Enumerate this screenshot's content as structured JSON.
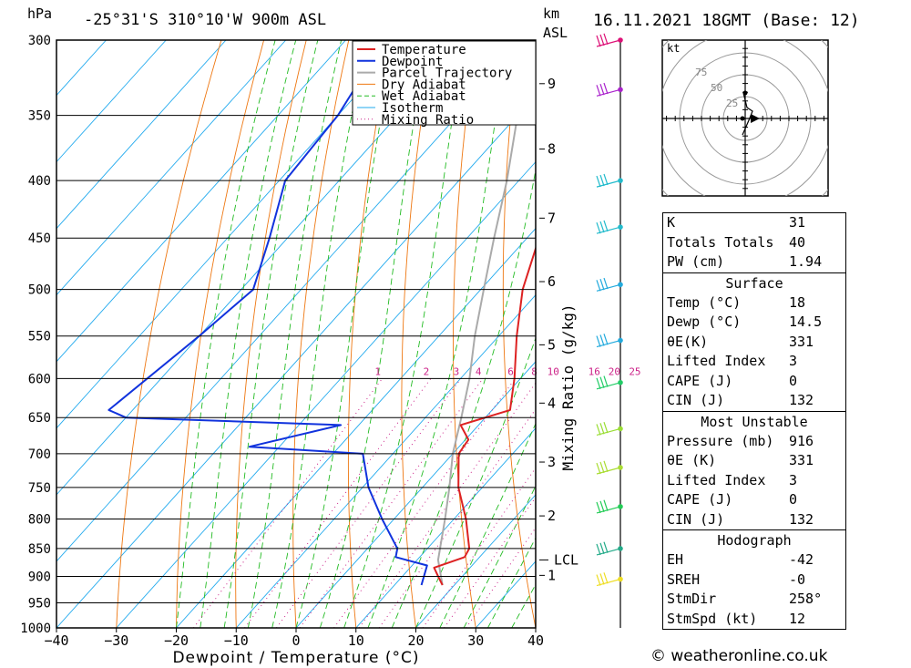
{
  "header": {
    "pressure_unit": "hPa",
    "location": "-25°31'S  310°10'W  900m  ASL",
    "height_unit": "km",
    "height_unit_sub": "ASL",
    "datetime": "16.11.2021  18GMT  (Base: 12)"
  },
  "chart_data": {
    "type": "skew-t log-p",
    "xlabel": "Dewpoint / Temperature (°C)",
    "ylabel": "hPa",
    "xlim": [
      -40,
      40
    ],
    "ylim": [
      1000,
      300
    ],
    "x_ticks": [
      -40,
      -30,
      -20,
      -10,
      0,
      10,
      20,
      30,
      40
    ],
    "p_levels": [
      300,
      350,
      400,
      450,
      500,
      550,
      600,
      650,
      700,
      750,
      800,
      850,
      900,
      950,
      1000
    ],
    "km_ticks": [
      {
        "label": "1",
        "p": 898
      },
      {
        "label": "2",
        "p": 795
      },
      {
        "label": "3",
        "p": 712
      },
      {
        "label": "4",
        "p": 631
      },
      {
        "label": "5",
        "p": 560
      },
      {
        "label": "6",
        "p": 492
      },
      {
        "label": "7",
        "p": 432
      },
      {
        "label": "8",
        "p": 375
      },
      {
        "label": "9",
        "p": 328
      }
    ],
    "lcl": {
      "label": "LCL",
      "p": 870
    },
    "mixing_ratio_label": "Mixing Ratio (g/kg)",
    "mixing_ratio_values": [
      "1",
      "2",
      "3",
      "4",
      "6",
      "8",
      "10",
      "16",
      "20",
      "25"
    ],
    "legend": [
      "Temperature",
      "Dewpoint",
      "Parcel Trajectory",
      "Dry Adiabat",
      "Wet Adiabat",
      "Isotherm",
      "Mixing Ratio"
    ],
    "temperature": [
      {
        "p": 916,
        "t": 18
      },
      {
        "p": 900,
        "t": 16
      },
      {
        "p": 884,
        "t": 14
      },
      {
        "p": 865,
        "t": 17.5
      },
      {
        "p": 850,
        "t": 17
      },
      {
        "p": 800,
        "t": 12
      },
      {
        "p": 750,
        "t": 6
      },
      {
        "p": 700,
        "t": 1
      },
      {
        "p": 680,
        "t": 0.5
      },
      {
        "p": 660,
        "t": -3
      },
      {
        "p": 640,
        "t": 3
      },
      {
        "p": 600,
        "t": -1
      },
      {
        "p": 550,
        "t": -7
      },
      {
        "p": 500,
        "t": -13
      },
      {
        "p": 450,
        "t": -18
      },
      {
        "p": 400,
        "t": -24
      },
      {
        "p": 350,
        "t": -32
      },
      {
        "p": 300,
        "t": -42
      }
    ],
    "dewpoint": [
      {
        "p": 916,
        "t": 14.5
      },
      {
        "p": 880,
        "t": 12.5
      },
      {
        "p": 865,
        "t": 6
      },
      {
        "p": 850,
        "t": 5
      },
      {
        "p": 800,
        "t": -2
      },
      {
        "p": 750,
        "t": -9
      },
      {
        "p": 700,
        "t": -15
      },
      {
        "p": 690,
        "t": -35
      },
      {
        "p": 660,
        "t": -23
      },
      {
        "p": 650,
        "t": -60
      },
      {
        "p": 640,
        "t": -64
      },
      {
        "p": 550,
        "t": -60
      },
      {
        "p": 500,
        "t": -58
      },
      {
        "p": 450,
        "t": -63
      },
      {
        "p": 400,
        "t": -69
      },
      {
        "p": 350,
        "t": -70
      },
      {
        "p": 320,
        "t": -72
      },
      {
        "p": 300,
        "t": -70
      }
    ],
    "parcel": [
      {
        "p": 916,
        "t": 18
      },
      {
        "p": 870,
        "t": 13.5
      },
      {
        "p": 800,
        "t": 8.5
      },
      {
        "p": 750,
        "t": 4.5
      },
      {
        "p": 700,
        "t": 0
      },
      {
        "p": 650,
        "t": -4
      },
      {
        "p": 600,
        "t": -8.5
      },
      {
        "p": 550,
        "t": -14
      },
      {
        "p": 500,
        "t": -19.5
      },
      {
        "p": 450,
        "t": -25.5
      },
      {
        "p": 400,
        "t": -32
      },
      {
        "p": 350,
        "t": -40
      },
      {
        "p": 300,
        "t": -50
      }
    ],
    "wind_profile": [
      {
        "p": 300,
        "color": "#dd1177"
      },
      {
        "p": 332,
        "color": "#aa22cc"
      },
      {
        "p": 400,
        "color": "#22bbcc"
      },
      {
        "p": 440,
        "color": "#22bbcc"
      },
      {
        "p": 495,
        "color": "#22aadd"
      },
      {
        "p": 555,
        "color": "#22aadd"
      },
      {
        "p": 605,
        "color": "#22cc66"
      },
      {
        "p": 665,
        "color": "#99dd33"
      },
      {
        "p": 720,
        "color": "#aadd33"
      },
      {
        "p": 780,
        "color": "#22cc55"
      },
      {
        "p": 850,
        "color": "#22aa88"
      },
      {
        "p": 905,
        "color": "#eedd22"
      }
    ],
    "hodograph_unit": "kt",
    "hodograph_rings": [
      "25",
      "50",
      "75"
    ]
  },
  "indices": {
    "k": {
      "label": "K",
      "value": "31"
    },
    "tt": {
      "label": "Totals Totals",
      "value": "40"
    },
    "pw": {
      "label": "PW (cm)",
      "value": "1.94"
    }
  },
  "surface": {
    "title": "Surface",
    "temp": {
      "label": "Temp (°C)",
      "value": "18"
    },
    "dewp": {
      "label": "Dewp (°C)",
      "value": "14.5"
    },
    "theta": {
      "label": "θE(K)",
      "value": "331"
    },
    "li": {
      "label": "Lifted Index",
      "value": "3"
    },
    "cape": {
      "label": "CAPE (J)",
      "value": "0"
    },
    "cin": {
      "label": "CIN (J)",
      "value": "132"
    }
  },
  "most_unstable": {
    "title": "Most Unstable",
    "pressure": {
      "label": "Pressure (mb)",
      "value": "916"
    },
    "theta": {
      "label": "θE (K)",
      "value": "331"
    },
    "li": {
      "label": "Lifted Index",
      "value": "3"
    },
    "cape": {
      "label": "CAPE (J)",
      "value": "0"
    },
    "cin": {
      "label": "CIN (J)",
      "value": "132"
    }
  },
  "hodograph_table": {
    "title": "Hodograph",
    "eh": {
      "label": "EH",
      "value": "-42"
    },
    "sreh": {
      "label": "SREH",
      "value": "-0"
    },
    "stmdir": {
      "label": "StmDir",
      "value": "258°"
    },
    "stmspd": {
      "label": "StmSpd (kt)",
      "value": "12"
    }
  },
  "credit": "© weatheronline.co.uk",
  "colors": {
    "temperature": "#dd2222",
    "dewpoint": "#1133dd",
    "parcel": "#aaaaaa",
    "dry_adiabat": "#ee7711",
    "wet_adiabat": "#22bb22",
    "isotherm": "#22aaee",
    "mixing_ratio": "#cc2288"
  }
}
